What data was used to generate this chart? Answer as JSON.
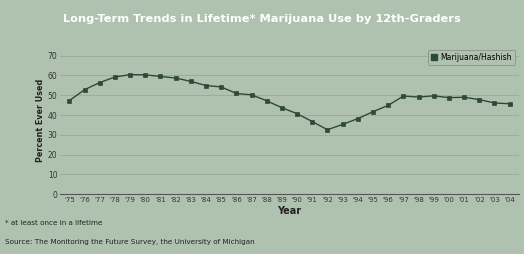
{
  "title": "Long-Term Trends in Lifetime* Marijuana Use by 12th-Graders",
  "title_bg_color": "#3a5a4a",
  "title_text_color": "#ffffff",
  "bg_color": "#afc2af",
  "plot_bg_color": "#afc2af",
  "line_color": "#2d4a38",
  "marker_color": "#2d4a38",
  "xlabel": "Year",
  "ylabel": "Percent Ever Used",
  "footnote1": "* at least once in a lifetime",
  "footnote2": "Source: The Monitoring the Future Survey, the University of Michigan",
  "legend_label": "Marijuana/Hashish",
  "years": [
    "'75",
    "'76",
    "'77",
    "'78",
    "'79",
    "'80",
    "'81",
    "'82",
    "'83",
    "'84",
    "'85",
    "'86",
    "'87",
    "'88",
    "'89",
    "'90",
    "'91",
    "'92",
    "'93",
    "'94",
    "'95",
    "'96",
    "'97",
    "'98",
    "'99",
    "'00",
    "'01",
    "'02",
    "'03",
    "'04"
  ],
  "values": [
    47.3,
    52.8,
    56.4,
    59.2,
    60.4,
    60.3,
    59.5,
    58.7,
    57.0,
    54.9,
    54.2,
    50.9,
    50.2,
    47.2,
    43.7,
    40.7,
    36.7,
    32.6,
    35.3,
    38.2,
    41.7,
    44.9,
    49.6,
    49.1,
    49.7,
    48.8,
    49.0,
    47.8,
    46.1,
    45.7
  ],
  "yticks": [
    0,
    10,
    20,
    30,
    40,
    50,
    60,
    70
  ],
  "ylim": [
    0,
    75
  ]
}
